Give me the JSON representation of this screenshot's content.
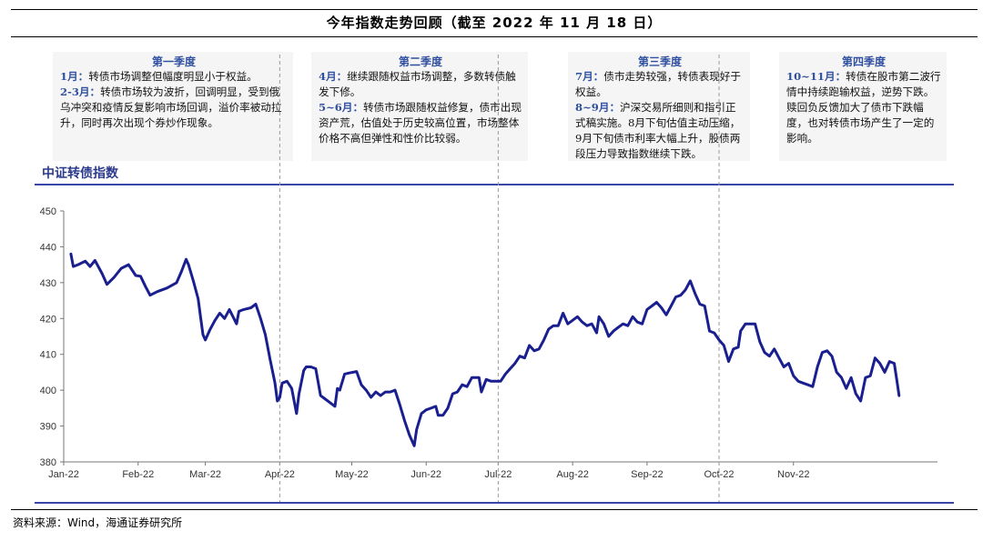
{
  "header": {
    "title": "今年指数走势回顾（截至 2022 年 11 月 18 日）"
  },
  "quarters": [
    {
      "title": "第一季度",
      "entries": [
        {
          "month": "1月：",
          "text": "转债市场调整但幅度明显小于权益。"
        },
        {
          "month": "2-3月：",
          "text": "转债市场较为波折，回调明显，受到俄乌冲突和疫情反复影响市场回调，溢价率被动拉升，同时再次出现个券炒作现象。"
        }
      ]
    },
    {
      "title": "第二季度",
      "entries": [
        {
          "month": "4月：",
          "text": "继续跟随权益市场调整，多数转债触发下修。"
        },
        {
          "month": "5~6月：",
          "text": "转债市场跟随权益修复，债市出现资产荒，估值处于历史较高位置，市场整体价格不高但弹性和性价比较弱。"
        }
      ]
    },
    {
      "title": "第三季度",
      "entries": [
        {
          "month": "7月：",
          "text": "债市走势较强，转债表现好于权益。"
        },
        {
          "month": "8~9月：",
          "text": "沪深交易所细则和指引正式稿实施。8月下旬估值主动压缩，9月下旬债市利率大幅上升，股债两段压力导致指数继续下跌。"
        }
      ]
    },
    {
      "title": "第四季度",
      "entries": [
        {
          "month": "10~11月：",
          "text": "转债在股市第二波行情中持续跑输权益，逆势下跌。赎回负反馈加大了债市下跌幅度，也对转债市场产生了一定的影响。"
        }
      ]
    }
  ],
  "chart_label": "中证转债指数",
  "source": "资料来源：Wind，海通证券研究所",
  "colors": {
    "line": "#1a1f8f",
    "accent": "#2f4fa0",
    "rule": "#3a47a8"
  },
  "chart_data": {
    "type": "line",
    "title": "中证转债指数",
    "x_tick_labels": [
      "Jan-22",
      "Feb-22",
      "Mar-22",
      "Apr-22",
      "May-22",
      "Jun-22",
      "Jul-22",
      "Aug-22",
      "Sep-22",
      "Oct-22",
      "Nov-22"
    ],
    "ylim": [
      380,
      450
    ],
    "y_ticks": [
      380,
      390,
      400,
      410,
      420,
      430,
      440,
      450
    ],
    "grid": false,
    "quarter_dividers": [
      "2022-04-01",
      "2022-07-01",
      "2022-10-01"
    ],
    "series": [
      {
        "values": [
          [
            "2022-01-04",
            438.0
          ],
          [
            "2022-01-05",
            434.5
          ],
          [
            "2022-01-07",
            435.0
          ],
          [
            "2022-01-10",
            436.0
          ],
          [
            "2022-01-12",
            434.5
          ],
          [
            "2022-01-14",
            436.2
          ],
          [
            "2022-01-17",
            432.5
          ],
          [
            "2022-01-19",
            429.5
          ],
          [
            "2022-01-22",
            431.5
          ],
          [
            "2022-01-25",
            434.0
          ],
          [
            "2022-01-28",
            435.0
          ],
          [
            "2022-01-31",
            432.0
          ],
          [
            "2022-02-02",
            431.8
          ],
          [
            "2022-02-04",
            429.0
          ],
          [
            "2022-02-06",
            426.5
          ],
          [
            "2022-02-09",
            427.5
          ],
          [
            "2022-02-13",
            428.5
          ],
          [
            "2022-02-17",
            430.0
          ],
          [
            "2022-02-19",
            433.0
          ],
          [
            "2022-02-21",
            436.5
          ],
          [
            "2022-02-22",
            435.0
          ],
          [
            "2022-02-24",
            430.5
          ],
          [
            "2022-02-26",
            425.5
          ],
          [
            "2022-02-27",
            420.5
          ],
          [
            "2022-02-28",
            415.5
          ],
          [
            "2022-03-01",
            414.0
          ],
          [
            "2022-03-03",
            417.0
          ],
          [
            "2022-03-05",
            419.5
          ],
          [
            "2022-03-07",
            421.5
          ],
          [
            "2022-03-09",
            420.0
          ],
          [
            "2022-03-11",
            422.5
          ],
          [
            "2022-03-14",
            418.5
          ],
          [
            "2022-03-15",
            422.0
          ],
          [
            "2022-03-17",
            422.5
          ],
          [
            "2022-03-20",
            423.0
          ],
          [
            "2022-03-22",
            424.0
          ],
          [
            "2022-03-24",
            420.0
          ],
          [
            "2022-03-26",
            415.5
          ],
          [
            "2022-03-28",
            408.5
          ],
          [
            "2022-03-30",
            402.0
          ],
          [
            "2022-03-31",
            397.0
          ],
          [
            "2022-04-01",
            398.0
          ],
          [
            "2022-04-02",
            402.0
          ],
          [
            "2022-04-04",
            402.5
          ],
          [
            "2022-04-06",
            400.5
          ],
          [
            "2022-04-08",
            393.5
          ],
          [
            "2022-04-09",
            399.0
          ],
          [
            "2022-04-11",
            405.5
          ],
          [
            "2022-04-12",
            406.5
          ],
          [
            "2022-04-14",
            406.5
          ],
          [
            "2022-04-16",
            406.0
          ],
          [
            "2022-04-18",
            398.5
          ],
          [
            "2022-04-20",
            397.5
          ],
          [
            "2022-04-22",
            396.5
          ],
          [
            "2022-04-24",
            395.5
          ],
          [
            "2022-04-25",
            400.5
          ],
          [
            "2022-04-26",
            400.0
          ],
          [
            "2022-04-28",
            404.5
          ],
          [
            "2022-04-30",
            404.8
          ],
          [
            "2022-05-03",
            405.2
          ],
          [
            "2022-05-05",
            401.5
          ],
          [
            "2022-05-07",
            400.0
          ],
          [
            "2022-05-09",
            398.0
          ],
          [
            "2022-05-11",
            399.5
          ],
          [
            "2022-05-13",
            398.5
          ],
          [
            "2022-05-15",
            399.5
          ],
          [
            "2022-05-17",
            399.5
          ],
          [
            "2022-05-19",
            400.0
          ],
          [
            "2022-05-21",
            396.0
          ],
          [
            "2022-05-23",
            391.5
          ],
          [
            "2022-05-25",
            387.5
          ],
          [
            "2022-05-27",
            384.5
          ],
          [
            "2022-05-28",
            389.0
          ],
          [
            "2022-05-30",
            393.5
          ],
          [
            "2022-06-01",
            394.5
          ],
          [
            "2022-06-03",
            395.0
          ],
          [
            "2022-06-05",
            395.5
          ],
          [
            "2022-06-06",
            393.0
          ],
          [
            "2022-06-08",
            393.0
          ],
          [
            "2022-06-10",
            395.0
          ],
          [
            "2022-06-12",
            399.0
          ],
          [
            "2022-06-14",
            399.5
          ],
          [
            "2022-06-16",
            401.5
          ],
          [
            "2022-06-18",
            401.0
          ],
          [
            "2022-06-20",
            403.5
          ],
          [
            "2022-06-23",
            403.5
          ],
          [
            "2022-06-24",
            399.5
          ],
          [
            "2022-06-26",
            403.0
          ],
          [
            "2022-06-28",
            402.5
          ],
          [
            "2022-06-30",
            402.5
          ],
          [
            "2022-07-02",
            402.5
          ],
          [
            "2022-07-04",
            404.5
          ],
          [
            "2022-07-06",
            406.0
          ],
          [
            "2022-07-08",
            407.5
          ],
          [
            "2022-07-10",
            409.5
          ],
          [
            "2022-07-12",
            409.0
          ],
          [
            "2022-07-14",
            412.5
          ],
          [
            "2022-07-16",
            411.0
          ],
          [
            "2022-07-18",
            411.5
          ],
          [
            "2022-07-20",
            414.0
          ],
          [
            "2022-07-22",
            417.0
          ],
          [
            "2022-07-24",
            418.0
          ],
          [
            "2022-07-26",
            418.0
          ],
          [
            "2022-07-28",
            421.5
          ],
          [
            "2022-07-30",
            418.5
          ],
          [
            "2022-08-01",
            419.5
          ],
          [
            "2022-08-03",
            420.5
          ],
          [
            "2022-08-05",
            419.0
          ],
          [
            "2022-08-07",
            418.0
          ],
          [
            "2022-08-09",
            418.5
          ],
          [
            "2022-08-11",
            416.0
          ],
          [
            "2022-08-12",
            420.5
          ],
          [
            "2022-08-14",
            418.5
          ],
          [
            "2022-08-16",
            415.0
          ],
          [
            "2022-08-18",
            416.5
          ],
          [
            "2022-08-20",
            417.5
          ],
          [
            "2022-08-22",
            418.5
          ],
          [
            "2022-08-24",
            418.0
          ],
          [
            "2022-08-26",
            420.5
          ],
          [
            "2022-08-28",
            419.0
          ],
          [
            "2022-08-30",
            418.5
          ],
          [
            "2022-09-01",
            422.5
          ],
          [
            "2022-09-03",
            423.5
          ],
          [
            "2022-09-05",
            424.5
          ],
          [
            "2022-09-07",
            423.0
          ],
          [
            "2022-09-09",
            421.0
          ],
          [
            "2022-09-11",
            423.5
          ],
          [
            "2022-09-13",
            426.0
          ],
          [
            "2022-09-15",
            426.5
          ],
          [
            "2022-09-17",
            428.0
          ],
          [
            "2022-09-19",
            430.5
          ],
          [
            "2022-09-21",
            427.0
          ],
          [
            "2022-09-23",
            424.0
          ],
          [
            "2022-09-25",
            423.5
          ],
          [
            "2022-09-27",
            416.5
          ],
          [
            "2022-09-29",
            416.0
          ],
          [
            "2022-10-01",
            414.0
          ],
          [
            "2022-10-03",
            412.5
          ],
          [
            "2022-10-05",
            408.0
          ],
          [
            "2022-10-07",
            411.5
          ],
          [
            "2022-10-09",
            412.0
          ],
          [
            "2022-10-10",
            416.5
          ],
          [
            "2022-10-12",
            418.5
          ],
          [
            "2022-10-14",
            418.5
          ],
          [
            "2022-10-16",
            418.5
          ],
          [
            "2022-10-18",
            413.5
          ],
          [
            "2022-10-20",
            410.5
          ],
          [
            "2022-10-22",
            409.5
          ],
          [
            "2022-10-24",
            411.5
          ],
          [
            "2022-10-26",
            409.0
          ],
          [
            "2022-10-28",
            406.5
          ],
          [
            "2022-10-30",
            407.5
          ],
          [
            "2022-11-01",
            404.0
          ],
          [
            "2022-11-03",
            402.5
          ],
          [
            "2022-11-05",
            402.0
          ],
          [
            "2022-11-07",
            401.5
          ],
          [
            "2022-11-09",
            401.0
          ],
          [
            "2022-11-11",
            406.5
          ],
          [
            "2022-11-13",
            410.5
          ],
          [
            "2022-11-15",
            411.0
          ],
          [
            "2022-11-17",
            409.5
          ],
          [
            "2022-11-19",
            405.0
          ],
          [
            "2022-11-21",
            403.5
          ],
          [
            "2022-11-23",
            400.5
          ],
          [
            "2022-11-25",
            403.5
          ],
          [
            "2022-11-27",
            399.0
          ],
          [
            "2022-11-29",
            397.0
          ],
          [
            "2022-12-01",
            403.5
          ],
          [
            "2022-12-03",
            404.0
          ],
          [
            "2022-12-05",
            409.0
          ],
          [
            "2022-12-07",
            407.5
          ],
          [
            "2022-12-09",
            405.0
          ],
          [
            "2022-12-11",
            408.0
          ],
          [
            "2022-12-13",
            407.5
          ],
          [
            "2022-12-14",
            403.0
          ],
          [
            "2022-12-15",
            398.5
          ]
        ]
      }
    ]
  }
}
